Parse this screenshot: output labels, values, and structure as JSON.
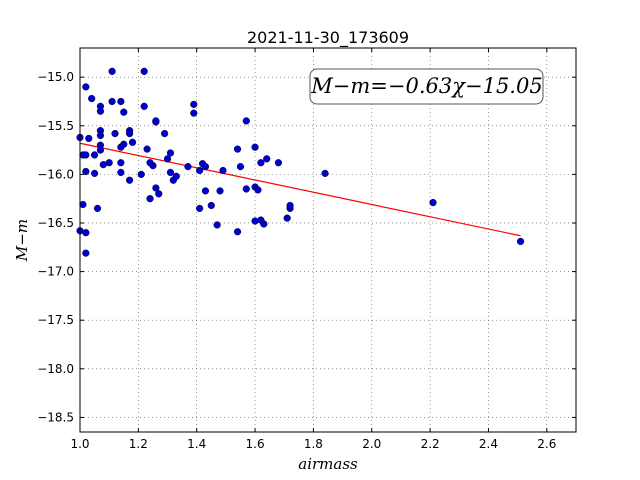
{
  "chart_data": {
    "type": "scatter",
    "title": "2021-11-30_173609",
    "xlabel": "airmass",
    "ylabel": "M−m",
    "xlim": [
      1.0,
      2.7
    ],
    "ylim": [
      -18.65,
      -14.7
    ],
    "xticks": [
      1.0,
      1.2,
      1.4,
      1.6,
      1.8,
      2.0,
      2.2,
      2.4,
      2.6
    ],
    "xtick_labels": [
      "1.0",
      "1.2",
      "1.4",
      "1.6",
      "1.8",
      "2.0",
      "2.2",
      "2.4",
      "2.6"
    ],
    "yticks": [
      -15.0,
      -15.5,
      -16.0,
      -16.5,
      -17.0,
      -17.5,
      -18.0,
      -18.5
    ],
    "ytick_labels": [
      "−15.0",
      "−15.5",
      "−16.0",
      "−16.5",
      "−17.0",
      "−17.5",
      "−18.0",
      "−18.5"
    ],
    "grid": true,
    "fit": {
      "slope": -0.63,
      "intercept": -15.05,
      "x_range": [
        1.0,
        2.51
      ],
      "color": "#ff0000"
    },
    "annotation": "M−m=−0.63χ−15.05",
    "point_color": "#0000cc",
    "points": [
      [
        1.02,
        -15.1
      ],
      [
        1.04,
        -15.22
      ],
      [
        1.11,
        -14.94
      ],
      [
        1.22,
        -14.94
      ],
      [
        1.11,
        -15.25
      ],
      [
        1.14,
        -15.25
      ],
      [
        1.07,
        -15.3
      ],
      [
        1.07,
        -15.35
      ],
      [
        1.22,
        -15.3
      ],
      [
        1.39,
        -15.28
      ],
      [
        1.39,
        -15.37
      ],
      [
        1.15,
        -15.36
      ],
      [
        1.26,
        -15.46
      ],
      [
        1.26,
        -15.45
      ],
      [
        1.57,
        -15.45
      ],
      [
        1.0,
        -15.62
      ],
      [
        1.03,
        -15.63
      ],
      [
        1.07,
        -15.55
      ],
      [
        1.07,
        -15.6
      ],
      [
        1.12,
        -15.58
      ],
      [
        1.17,
        -15.55
      ],
      [
        1.17,
        -15.58
      ],
      [
        1.29,
        -15.58
      ],
      [
        1.01,
        -15.8
      ],
      [
        1.02,
        -15.8
      ],
      [
        1.05,
        -15.8
      ],
      [
        1.07,
        -15.7
      ],
      [
        1.07,
        -15.75
      ],
      [
        1.14,
        -15.72
      ],
      [
        1.15,
        -15.69
      ],
      [
        1.18,
        -15.67
      ],
      [
        1.23,
        -15.74
      ],
      [
        1.31,
        -15.78
      ],
      [
        1.54,
        -15.74
      ],
      [
        1.6,
        -15.72
      ],
      [
        1.02,
        -15.97
      ],
      [
        1.05,
        -15.99
      ],
      [
        1.08,
        -15.9
      ],
      [
        1.1,
        -15.88
      ],
      [
        1.14,
        -15.88
      ],
      [
        1.14,
        -15.98
      ],
      [
        1.17,
        -16.06
      ],
      [
        1.21,
        -16.0
      ],
      [
        1.24,
        -15.88
      ],
      [
        1.25,
        -15.91
      ],
      [
        1.3,
        -15.84
      ],
      [
        1.31,
        -15.98
      ],
      [
        1.32,
        -16.06
      ],
      [
        1.33,
        -16.02
      ],
      [
        1.37,
        -15.92
      ],
      [
        1.41,
        -15.96
      ],
      [
        1.42,
        -15.89
      ],
      [
        1.43,
        -15.92
      ],
      [
        1.49,
        -15.96
      ],
      [
        1.55,
        -15.92
      ],
      [
        1.62,
        -15.88
      ],
      [
        1.64,
        -15.84
      ],
      [
        1.68,
        -15.88
      ],
      [
        1.84,
        -15.99
      ],
      [
        1.01,
        -16.31
      ],
      [
        1.06,
        -16.35
      ],
      [
        1.24,
        -16.25
      ],
      [
        1.26,
        -16.14
      ],
      [
        1.27,
        -16.2
      ],
      [
        1.41,
        -16.35
      ],
      [
        1.43,
        -16.17
      ],
      [
        1.45,
        -16.32
      ],
      [
        1.48,
        -16.17
      ],
      [
        1.57,
        -16.15
      ],
      [
        1.6,
        -16.13
      ],
      [
        1.61,
        -16.16
      ],
      [
        1.6,
        -16.48
      ],
      [
        1.62,
        -16.47
      ],
      [
        1.63,
        -16.51
      ],
      [
        1.47,
        -16.52
      ],
      [
        1.54,
        -16.59
      ],
      [
        1.71,
        -16.45
      ],
      [
        1.72,
        -16.35
      ],
      [
        1.72,
        -16.32
      ],
      [
        2.21,
        -16.29
      ],
      [
        2.51,
        -16.69
      ],
      [
        1.0,
        -16.58
      ],
      [
        1.02,
        -16.6
      ],
      [
        1.02,
        -16.81
      ]
    ]
  }
}
